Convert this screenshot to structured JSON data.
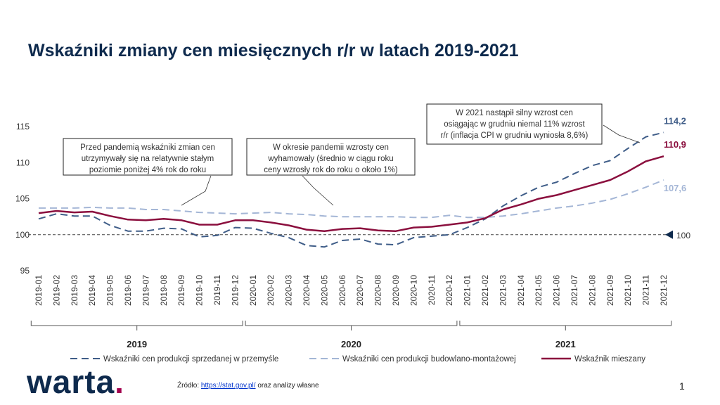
{
  "slide": {
    "title": "Wskaźniki zmiany cen miesięcznych r/r w latach 2019-2021",
    "logo_text": "warta",
    "logo_dot": ".",
    "source_prefix": "Źródło:",
    "source_link": "https://stat.gov.pl/",
    "source_suffix": "oraz analizy własne",
    "page_number": "1"
  },
  "colors": {
    "przemysl": "#3f5d88",
    "budowlana": "#a4b6d6",
    "mieszany": "#8b0f3e",
    "title": "#0e2a4d",
    "logo_dot": "#a3004f"
  },
  "chart_data": {
    "type": "line",
    "title": "Wskaźniki zmiany cen miesięcznych r/r w latach 2019-2021",
    "ylim": [
      95,
      116
    ],
    "yticks": [
      95,
      100,
      105,
      110,
      115
    ],
    "x": [
      "2019-01",
      "2019-02",
      "2019-03",
      "2019-04",
      "2019-05",
      "2019-06",
      "2019-07",
      "2019-08",
      "2019-09",
      "2019-10",
      "2019-11",
      "2019-12",
      "2020-01",
      "2020-02",
      "2020-03",
      "2020-04",
      "2020-05",
      "2020-06",
      "2020-07",
      "2020-08",
      "2020-09",
      "2020-10",
      "2020-11",
      "2020-12",
      "2021-01",
      "2021-02",
      "2021-03",
      "2021-04",
      "2021-05",
      "2021-06",
      "2021-07",
      "2021-08",
      "2021-09",
      "2021-10",
      "2021-11",
      "2021-12"
    ],
    "year_groups": [
      {
        "label": "2019",
        "from": 0,
        "to": 11
      },
      {
        "label": "2020",
        "from": 12,
        "to": 23
      },
      {
        "label": "2021",
        "from": 24,
        "to": 35
      }
    ],
    "reference_line": {
      "value": 100,
      "label": "100"
    },
    "series": [
      {
        "key": "przemysl",
        "name": "Wskaźniki cen produkcji sprzedanej w przemyśle",
        "style": "dashed",
        "end_label": "114,2",
        "values": [
          102.2,
          102.9,
          102.6,
          102.6,
          101.3,
          100.5,
          100.5,
          100.9,
          100.8,
          99.7,
          99.9,
          101.0,
          100.9,
          100.2,
          99.6,
          98.5,
          98.3,
          99.2,
          99.4,
          98.7,
          98.6,
          99.6,
          99.8,
          100.0,
          101.0,
          102.2,
          104.0,
          105.4,
          106.6,
          107.3,
          108.5,
          109.6,
          110.3,
          112.0,
          113.6,
          114.2
        ]
      },
      {
        "key": "budowlana",
        "name": "Wskaźniki cen produkcji budowlano-montażowej",
        "style": "dashed",
        "end_label": "107,6",
        "values": [
          103.7,
          103.7,
          103.7,
          103.8,
          103.7,
          103.7,
          103.5,
          103.5,
          103.3,
          103.1,
          103.0,
          102.9,
          103.0,
          103.1,
          102.9,
          102.8,
          102.6,
          102.5,
          102.5,
          102.5,
          102.5,
          102.4,
          102.4,
          102.7,
          102.4,
          102.4,
          102.6,
          102.9,
          103.3,
          103.7,
          104.0,
          104.4,
          104.9,
          105.7,
          106.6,
          107.6
        ]
      },
      {
        "key": "mieszany",
        "name": "Wskaźnik mieszany",
        "style": "solid",
        "end_label": "110,9",
        "values": [
          103.0,
          103.3,
          103.1,
          103.2,
          102.6,
          102.1,
          102.0,
          102.2,
          102.0,
          101.4,
          101.4,
          102.0,
          102.0,
          101.7,
          101.3,
          100.7,
          100.5,
          100.8,
          100.9,
          100.6,
          100.5,
          101.0,
          101.1,
          101.4,
          101.7,
          102.3,
          103.5,
          104.2,
          105.0,
          105.5,
          106.2,
          106.9,
          107.6,
          108.8,
          110.2,
          110.9
        ]
      }
    ],
    "annotations": [
      {
        "key": "pre",
        "lines": [
          "Przed pandemią wskaźniki zmian cen",
          "utrzymywały  się na relatywnie stałym",
          "poziomie poniżej 4% rok do roku"
        ]
      },
      {
        "key": "pandemic",
        "lines": [
          "W okresie pandemii wzrosty  cen",
          "wyhamowały  (średnio w ciągu roku",
          "ceny wzrosły  rok do roku o około 1%)"
        ]
      },
      {
        "key": "y2021",
        "lines": [
          "W 2021 nastąpił silny wzrost cen",
          "osiągając w grudniu niemal 11% wzrost",
          "r/r  (inflacja CPI w grudniu wyniosła 8,6%)"
        ]
      }
    ]
  }
}
